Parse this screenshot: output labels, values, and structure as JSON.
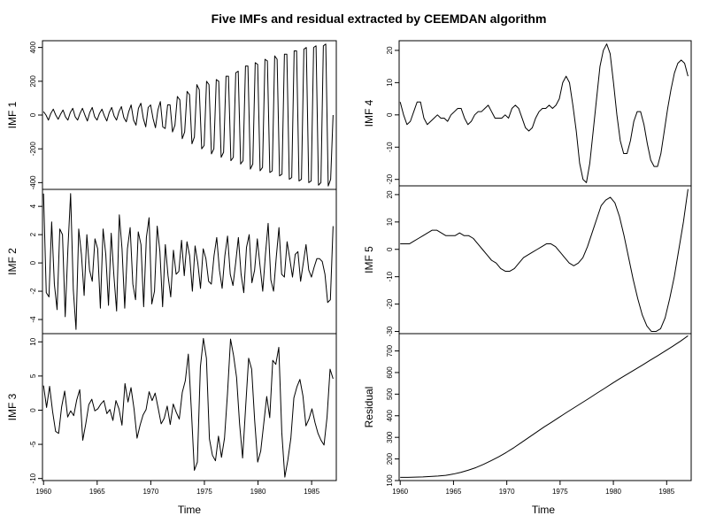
{
  "chart_data": {
    "type": "line",
    "title": "Five IMFs and residual extracted by CEEMDAN algorithm",
    "xlabel": "Time",
    "x_start": 1960,
    "x_end": 1987,
    "xticks": [
      "1960",
      "1965",
      "1970",
      "1975",
      "1980",
      "1985"
    ],
    "xlim": [
      1959.9,
      1987.3
    ],
    "panels": [
      {
        "name": "IMF 1",
        "ylabel": "IMF 1",
        "ylim": [
          -440,
          440
        ],
        "yticks": [
          "-400",
          "-200",
          "0",
          "200",
          "400"
        ],
        "values": [
          20,
          0,
          -30,
          10,
          35,
          0,
          -25,
          5,
          30,
          -10,
          -30,
          15,
          40,
          -10,
          -30,
          10,
          40,
          0,
          -35,
          15,
          45,
          -10,
          -30,
          10,
          35,
          -5,
          -35,
          15,
          45,
          -5,
          -30,
          20,
          50,
          -15,
          -40,
          20,
          60,
          -30,
          -60,
          40,
          70,
          -20,
          -70,
          45,
          60,
          -20,
          -75,
          30,
          80,
          -70,
          -80,
          60,
          60,
          -100,
          -60,
          110,
          90,
          -140,
          -100,
          140,
          120,
          -170,
          -130,
          180,
          150,
          -200,
          -180,
          200,
          180,
          -230,
          -200,
          210,
          200,
          -250,
          -220,
          230,
          230,
          -270,
          -250,
          250,
          260,
          -290,
          -270,
          290,
          290,
          -320,
          -290,
          310,
          300,
          -330,
          -310,
          330,
          320,
          -340,
          -330,
          350,
          330,
          -360,
          -350,
          360,
          360,
          -380,
          -370,
          380,
          380,
          -390,
          -380,
          390,
          400,
          -400,
          -390,
          400,
          410,
          -415,
          -400,
          410,
          420,
          -420,
          -380,
          0
        ]
      },
      {
        "name": "IMF 2",
        "ylabel": "IMF 2",
        "ylim": [
          -5,
          5.2
        ],
        "yticks": [
          "-4",
          "-2",
          "0",
          "2",
          "4"
        ],
        "values": [
          4.9,
          -2.1,
          -2.4,
          2.9,
          -1.5,
          -3.3,
          2.4,
          2.0,
          -3.8,
          1.0,
          4.9,
          -1.9,
          -4.7,
          2.4,
          0.6,
          -2.3,
          2.0,
          -0.5,
          -1.3,
          1.7,
          1.0,
          -3.2,
          2.4,
          0.6,
          -3.0,
          2.1,
          -0.9,
          -3.4,
          3.4,
          1.0,
          -3.2,
          1.0,
          2.5,
          -1.5,
          -2.6,
          2.2,
          1.3,
          -3.1,
          1.8,
          3.2,
          -2.9,
          -2.0,
          2.6,
          0.8,
          -3.1,
          1.3,
          -0.9,
          -2.4,
          0.9,
          -0.8,
          -0.6,
          1.6,
          -0.9,
          1.5,
          0.5,
          -2.0,
          1.2,
          0.0,
          -1.8,
          1.0,
          0.3,
          -1.3,
          -1.5,
          0.5,
          1.8,
          -0.5,
          -1.8,
          0.5,
          1.9,
          -0.8,
          -1.6,
          0.0,
          1.8,
          -0.8,
          -2.1,
          1.1,
          2.0,
          -1.4,
          -0.5,
          1.7,
          -0.2,
          -2.0,
          0.6,
          2.8,
          -1.2,
          -2.0,
          0.4,
          2.5,
          -0.8,
          -1.0,
          1.5,
          0.3,
          -1.0,
          0.6,
          0.8,
          -1.3,
          0.0,
          1.3,
          -0.5,
          -1.0,
          -0.3,
          0.3,
          0.3,
          0.1,
          -0.8,
          -2.8,
          -2.6,
          2.6
        ]
      },
      {
        "name": "IMF 3",
        "ylabel": "IMF 3",
        "ylim": [
          -10.3,
          11.2
        ],
        "yticks": [
          "-10",
          "-5",
          "0",
          "5",
          "10"
        ],
        "values": [
          3.6,
          0.4,
          3.5,
          -0.2,
          -3.1,
          -3.4,
          0.5,
          2.8,
          -1.0,
          -0.1,
          -0.8,
          1.5,
          3.0,
          -4.4,
          -2.0,
          0.8,
          1.6,
          -0.1,
          0.2,
          0.9,
          1.4,
          -0.5,
          0.1,
          -1.5,
          1.4,
          0.2,
          -2.2,
          3.9,
          1.2,
          3.3,
          0.2,
          -4.1,
          -2.2,
          -0.7,
          0.1,
          2.7,
          1.4,
          2.5,
          0.3,
          -2.0,
          -1.2,
          0.6,
          -2.1,
          0.9,
          -0.3,
          -1.3,
          2.6,
          4.3,
          8.2,
          0.1,
          -8.8,
          -7.6,
          6.3,
          10.5,
          7.6,
          -4.2,
          -6.6,
          -7.4,
          -3.8,
          -6.9,
          -4.1,
          2.5,
          10.4,
          8.0,
          4.8,
          -2.0,
          -7.0,
          0.4,
          7.6,
          6.0,
          -1.5,
          -7.6,
          -6.0,
          -2.0,
          2.0,
          -1.1,
          7.3,
          6.7,
          9.2,
          -3.3,
          -9.8,
          -7.3,
          -4.1,
          1.8,
          3.4,
          4.5,
          2.1,
          -2.3,
          -1.3,
          0.2,
          -1.8,
          -3.4,
          -4.4,
          -5.1,
          -1.0,
          6.0,
          4.6
        ]
      },
      {
        "name": "IMF 4",
        "ylabel": "IMF 4",
        "ylim": [
          -22,
          23
        ],
        "yticks": [
          "-20",
          "-10",
          "0",
          "10",
          "20"
        ],
        "values": [
          4,
          0,
          -3,
          -2,
          1,
          4,
          4,
          -1,
          -3,
          -2,
          -1,
          0,
          -1,
          -1,
          -2,
          0,
          1,
          2,
          2,
          -1,
          -3,
          -2,
          0,
          1,
          1,
          2,
          3,
          1,
          -1,
          -1,
          -1,
          0,
          -1,
          2,
          3,
          2,
          -1,
          -4,
          -5,
          -4,
          -1,
          1,
          2,
          2,
          3,
          2,
          3,
          5,
          10,
          12,
          10,
          3,
          -5,
          -15,
          -20,
          -21,
          -15,
          -5,
          5,
          15,
          20,
          22,
          19,
          10,
          0,
          -8,
          -12,
          -12,
          -8,
          -2,
          1,
          1,
          -3,
          -9,
          -14,
          -16,
          -16,
          -12,
          -5,
          2,
          8,
          13,
          16,
          17,
          16,
          12
        ]
      },
      {
        "name": "IMF 5",
        "ylabel": "IMF 5",
        "ylim": [
          -30.8,
          23.2
        ],
        "yticks": [
          "-30",
          "-20",
          "-10",
          "0",
          "10",
          "20"
        ],
        "values": [
          2,
          2,
          2,
          3,
          4,
          5,
          6,
          7,
          7,
          6,
          5,
          5,
          5,
          6,
          5,
          5,
          4,
          2,
          0,
          -2,
          -4,
          -5,
          -7,
          -8,
          -8,
          -7,
          -5,
          -3,
          -2,
          -1,
          0,
          1,
          2,
          2,
          1,
          -1,
          -3,
          -5,
          -6,
          -5,
          -3,
          1,
          6,
          11,
          16,
          18,
          19,
          17,
          12,
          5,
          -3,
          -11,
          -18,
          -24,
          -28,
          -30,
          -30,
          -29,
          -25,
          -18,
          -10,
          0,
          10,
          22
        ]
      },
      {
        "name": "Residual",
        "ylabel": "Residual",
        "ylim": [
          100,
          780
        ],
        "yticks": [
          "100",
          "200",
          "300",
          "400",
          "500",
          "600",
          "700"
        ],
        "values": [
          115,
          115,
          116,
          117,
          119,
          121,
          124,
          130,
          138,
          148,
          160,
          175,
          192,
          210,
          230,
          252,
          276,
          300,
          324,
          348,
          370,
          393,
          416,
          438,
          460,
          482,
          505,
          527,
          550,
          572,
          593,
          614,
          635,
          657,
          678,
          700,
          722,
          745,
          770
        ]
      }
    ]
  }
}
